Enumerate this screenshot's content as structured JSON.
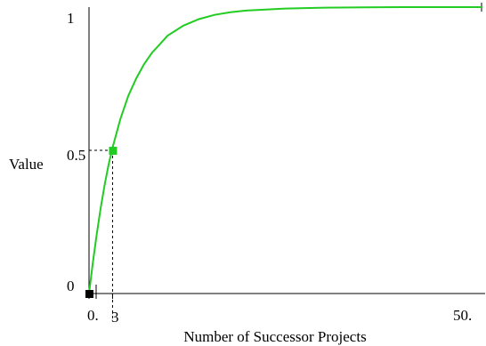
{
  "chart_data": {
    "type": "line",
    "title": "",
    "xlabel": "Number of Successor Projects",
    "ylabel": "Value",
    "xlim": [
      0,
      50
    ],
    "ylim": [
      0,
      1
    ],
    "grid": false,
    "legend": "none",
    "x_tick_labels": [
      "0.",
      "3",
      "50."
    ],
    "y_tick_labels": [
      "0",
      "0.5",
      "1"
    ],
    "series": [
      {
        "color": "#22cc22",
        "x": [
          0,
          0.5,
          1,
          1.5,
          2,
          2.5,
          3,
          4,
          5,
          6,
          7,
          8,
          9,
          10,
          12,
          14,
          16,
          18,
          20,
          25,
          30,
          35,
          40,
          45,
          50
        ],
        "y": [
          0,
          0.11,
          0.21,
          0.3,
          0.38,
          0.45,
          0.51,
          0.61,
          0.69,
          0.75,
          0.8,
          0.84,
          0.87,
          0.9,
          0.935,
          0.958,
          0.973,
          0.982,
          0.988,
          0.995,
          0.998,
          0.999,
          1.0,
          1.0,
          1.0
        ]
      }
    ],
    "highlight_point": {
      "x": 3,
      "y": 0.5,
      "color": "#22cc22"
    },
    "origin_marker_color": "#000000"
  }
}
